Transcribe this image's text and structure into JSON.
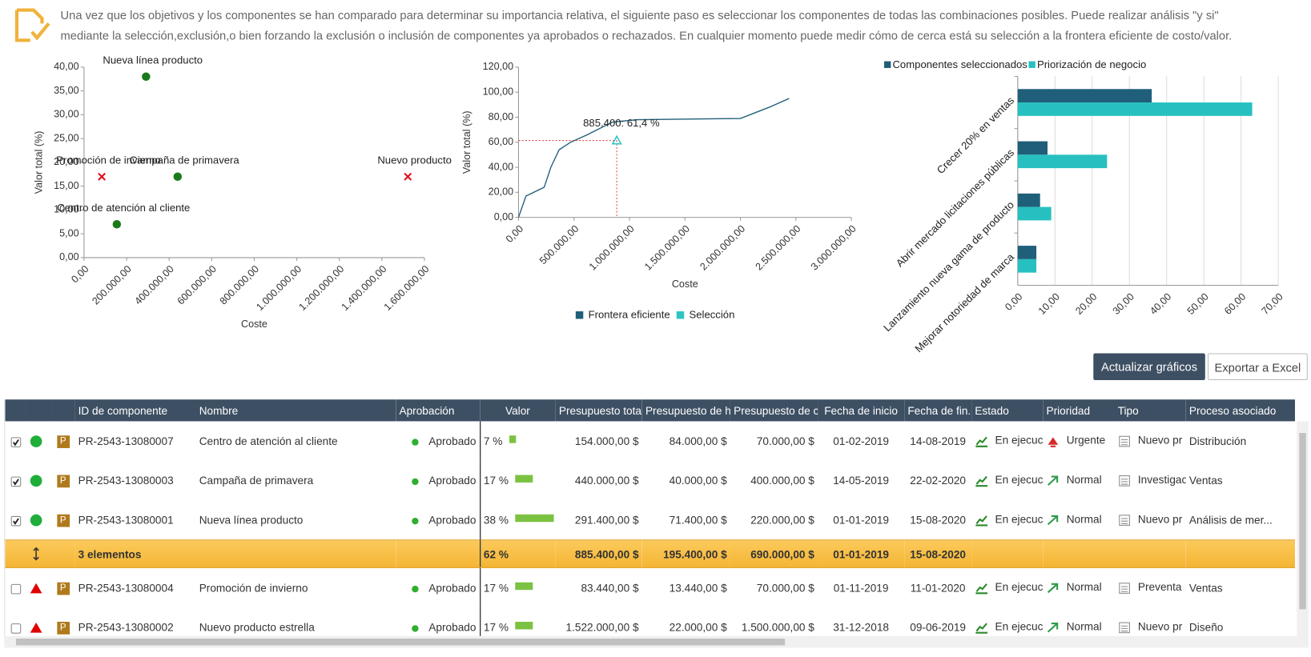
{
  "header": {
    "lines": [
      "Una vez que los objetivos y los componentes se han comparado para determinar su importancia relativa, el siguiente paso es seleccionar los componentes de todas las combinaciones posibles. Puede realizar análisis \"y si\"",
      "mediante la selección,exclusión,o bien forzando la exclusión o inclusión de componentes ya aprobados o rechazados. En cualquier momento puede medir cómo de cerca está su selección a la frontera eficiente de costo/valor."
    ]
  },
  "chart_data": [
    {
      "type": "scatter",
      "x_label": "Coste",
      "y_label": "Valor total (%)",
      "xlim": [
        0,
        1600000
      ],
      "xticks": [
        {
          "value": 0,
          "label": "0,00"
        },
        {
          "value": 200000,
          "label": "200.000,00"
        },
        {
          "value": 400000,
          "label": "400.000,00"
        },
        {
          "value": 600000,
          "label": "600.000,00"
        },
        {
          "value": 800000,
          "label": "800.000,00"
        },
        {
          "value": 1000000,
          "label": "1.000.000,00"
        },
        {
          "value": 1200000,
          "label": "1.200.000,00"
        },
        {
          "value": 1400000,
          "label": "1.400.000,00"
        },
        {
          "value": 1600000,
          "label": "1.600.000,00"
        }
      ],
      "ylim": [
        0,
        40
      ],
      "yticks": [
        {
          "value": 0,
          "label": "0,00"
        },
        {
          "value": 5,
          "label": "5,00"
        },
        {
          "value": 10,
          "label": "10,00"
        },
        {
          "value": 15,
          "label": "15,00"
        },
        {
          "value": 20,
          "label": "20,00"
        },
        {
          "value": 25,
          "label": "25,00"
        },
        {
          "value": 30,
          "label": "30,00"
        },
        {
          "value": 35,
          "label": "35,00"
        },
        {
          "value": 40,
          "label": "40,00"
        }
      ],
      "series": [
        {
          "color": "#1a7a1a",
          "marker": "circle",
          "x": [
            154000,
            440000,
            291400
          ],
          "values": [
            7,
            17,
            38
          ],
          "labels": [
            "Centro de atención al cliente",
            "Campaña de primavera",
            "Nueva línea producto"
          ]
        },
        {
          "color": "#e0101e",
          "marker": "cross",
          "x": [
            83440,
            1522000
          ],
          "values": [
            17,
            17
          ],
          "labels": [
            "Promoción de invierno",
            "Nuevo producto"
          ]
        }
      ]
    },
    {
      "type": "line",
      "x_label": "Coste",
      "y_label": "Valor total (%)",
      "xlim": [
        0,
        3000000
      ],
      "xticks": [
        {
          "value": 0,
          "label": "0,00"
        },
        {
          "value": 500000,
          "label": "500.000,00"
        },
        {
          "value": 1000000,
          "label": "1.000.000,00"
        },
        {
          "value": 1500000,
          "label": "1.500.000,00"
        },
        {
          "value": 2000000,
          "label": "2.000.000,00"
        },
        {
          "value": 2500000,
          "label": "2.500.000,00"
        },
        {
          "value": 3000000,
          "label": "3.000.000,00"
        }
      ],
      "ylim": [
        0,
        120
      ],
      "yticks": [
        {
          "value": 0,
          "label": "0,00"
        },
        {
          "value": 20,
          "label": "20,00"
        },
        {
          "value": 40,
          "label": "40,00"
        },
        {
          "value": 60,
          "label": "60,00"
        },
        {
          "value": 80,
          "label": "80,00"
        },
        {
          "value": 100,
          "label": "100,00"
        },
        {
          "value": 120,
          "label": "120,00"
        }
      ],
      "annotation": "885.400: 61,4 %",
      "series": [
        {
          "name": "Frontera eficiente",
          "color": "#1f5f7a",
          "marker": "line",
          "x": [
            0,
            67000,
            231000,
            291400,
            366000,
            470000,
            620000,
            843000,
            1067000,
            2000000,
            2261000,
            2440000
          ],
          "values": [
            0,
            17,
            24,
            40,
            54,
            60,
            66,
            76,
            78,
            79,
            88,
            95
          ]
        },
        {
          "name": "Selección",
          "color": "#2ec4c4",
          "marker": "triangle",
          "x": [
            885400
          ],
          "values": [
            61.4
          ]
        }
      ]
    },
    {
      "type": "bar",
      "orientation": "horizontal",
      "grid": true,
      "categories": [
        "Crecer 20% en ventas",
        "Abrir mercado licitaciones públicas",
        "Lanzamiento nueva gama de producto",
        "Mejorar notoriedad de marca"
      ],
      "xlim": [
        0,
        70
      ],
      "xticks": [
        {
          "value": 0,
          "label": "0,00"
        },
        {
          "value": 10,
          "label": "10,00"
        },
        {
          "value": 20,
          "label": "20,00"
        },
        {
          "value": 30,
          "label": "30,00"
        },
        {
          "value": 40,
          "label": "40,00"
        },
        {
          "value": 50,
          "label": "50,00"
        },
        {
          "value": 60,
          "label": "60,00"
        },
        {
          "value": 70,
          "label": "70,00"
        }
      ],
      "series": [
        {
          "name": "Componentes seleccionados",
          "color": "#1f5f7a",
          "values": [
            36,
            8,
            6,
            5
          ]
        },
        {
          "name": "Priorización de negocio",
          "color": "#27c0c0",
          "values": [
            63,
            24,
            9,
            5
          ]
        }
      ]
    }
  ],
  "buttons": [
    "Actualizar gráficos",
    "Exportar a Excel"
  ],
  "table": {
    "columns": [
      "ID de componente",
      "Nombre",
      "Aprobación",
      "Valor",
      "Presupuesto total",
      "Presupuesto de h...",
      "Presupuesto de c...",
      "Fecha de inicio",
      "Fecha de fin...",
      "Estado",
      "Prioridad",
      "Tipo",
      "Proceso asociado"
    ],
    "rows": [
      {
        "checked": true,
        "alert": false,
        "badge": "P",
        "id": "PR-2543-13080007",
        "name": "Centro de atención al cliente",
        "approval": "Aprobado",
        "value": 7,
        "value_label": "7 %",
        "total": "154.000,00 $",
        "budget_h": "84.000,00 $",
        "budget_c": "70.000,00 $",
        "start": "01-02-2019",
        "end": "14-08-2019",
        "status": "En ejecuc",
        "priority": "Urgente",
        "type": "Nuevo pr",
        "process": "Distribución"
      },
      {
        "checked": true,
        "alert": false,
        "badge": "P",
        "id": "PR-2543-13080003",
        "name": "Campaña de primavera",
        "approval": "Aprobado",
        "value": 17,
        "value_label": "17 %",
        "total": "440.000,00 $",
        "budget_h": "40.000,00 $",
        "budget_c": "400.000,00 $",
        "start": "14-05-2019",
        "end": "22-02-2020",
        "status": "En ejecuc",
        "priority": "Normal",
        "type": "Investigac",
        "process": "Ventas"
      },
      {
        "checked": true,
        "alert": false,
        "badge": "P",
        "id": "PR-2543-13080001",
        "name": "Nueva línea producto",
        "approval": "Aprobado",
        "value": 38,
        "value_label": "38 %",
        "total": "291.400,00 $",
        "budget_h": "71.400,00 $",
        "budget_c": "220.000,00 $",
        "start": "01-01-2019",
        "end": "15-08-2020",
        "status": "En ejecuc",
        "priority": "Normal",
        "type": "Nuevo pr",
        "process": "Análisis de mer..."
      },
      {
        "checked": false,
        "alert": true,
        "badge": "P",
        "id": "PR-2543-13080004",
        "name": "Promoción de invierno",
        "approval": "Aprobado",
        "value": 17,
        "value_label": "17 %",
        "total": "83.440,00 $",
        "budget_h": "13.440,00 $",
        "budget_c": "70.000,00 $",
        "start": "01-11-2019",
        "end": "11-01-2020",
        "status": "En ejecuc",
        "priority": "Normal",
        "type": "Preventa",
        "process": "Ventas"
      },
      {
        "checked": false,
        "alert": true,
        "badge": "P",
        "id": "PR-2543-13080002",
        "name": "Nuevo producto estrella",
        "approval": "Aprobado",
        "value": 17,
        "value_label": "17 %",
        "total": "1.522.000,00 $",
        "budget_h": "22.000,00 $",
        "budget_c": "1.500.000,00 $",
        "start": "31-12-2018",
        "end": "09-06-2019",
        "status": "En ejecuc",
        "priority": "Normal",
        "type": "Nuevo pr",
        "process": "Diseño"
      }
    ],
    "summary": {
      "after_row": 3,
      "label": "3 elementos",
      "value_label": "62 %",
      "total": "885.400,00 $",
      "budget_h": "195.400,00 $",
      "budget_c": "690.000,00 $",
      "start": "01-01-2019",
      "end": "15-08-2020"
    }
  }
}
